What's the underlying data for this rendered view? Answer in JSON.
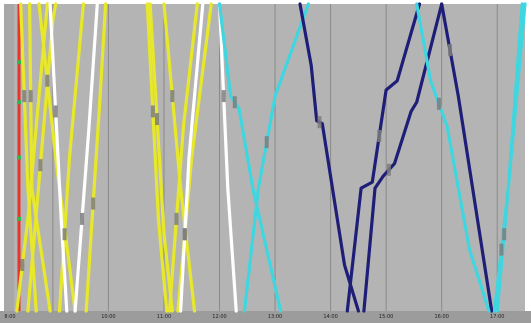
{
  "chart_data": {
    "type": "line",
    "title": "",
    "xlabel": "",
    "ylabel": "",
    "xlim": [
      8.3,
      17.5
    ],
    "ylim": [
      0,
      100
    ],
    "grid": true,
    "x_ticks": [
      {
        "value": 8,
        "label": "8:00"
      },
      {
        "value": 10,
        "label": "10:00"
      },
      {
        "value": 11,
        "label": "11:00"
      },
      {
        "value": 12,
        "label": "12:00"
      },
      {
        "value": 13,
        "label": "13:00"
      },
      {
        "value": 14,
        "label": "14:00"
      },
      {
        "value": 15,
        "label": "15:00"
      },
      {
        "value": 16,
        "label": "16:00"
      },
      {
        "value": 17,
        "label": "17:00"
      }
    ],
    "gridlines_x": [
      9,
      10,
      11,
      12,
      13,
      14,
      15,
      16,
      17
    ],
    "station_marks": [
      30,
      50,
      68,
      81
    ],
    "series": [
      {
        "color": "#e8e82a",
        "points": [
          [
            8.42,
            100
          ],
          [
            8.55,
            40
          ],
          [
            8.7,
            0
          ]
        ]
      },
      {
        "color": "#e8e82a",
        "points": [
          [
            8.58,
            100
          ],
          [
            8.62,
            40
          ],
          [
            8.95,
            0
          ]
        ]
      },
      {
        "color": "#e8e82a",
        "points": [
          [
            8.35,
            0
          ],
          [
            8.55,
            30
          ],
          [
            8.9,
            100
          ]
        ]
      },
      {
        "color": "#e8e82a",
        "points": [
          [
            8.55,
            0
          ],
          [
            9.0,
            95
          ],
          [
            9.05,
            100
          ]
        ]
      },
      {
        "color": "#e8e82a",
        "points": [
          [
            9.12,
            0
          ],
          [
            9.3,
            50
          ],
          [
            9.55,
            100
          ]
        ]
      },
      {
        "color": "#e8e82a",
        "points": [
          [
            8.75,
            100
          ],
          [
            9.05,
            50
          ],
          [
            9.4,
            0
          ]
        ]
      },
      {
        "color": "#e8e82a",
        "points": [
          [
            9.6,
            0
          ],
          [
            9.85,
            70
          ],
          [
            9.95,
            100
          ]
        ]
      },
      {
        "color": "#ffffff",
        "points": [
          [
            8.95,
            100
          ],
          [
            9.15,
            30
          ],
          [
            9.25,
            0
          ]
        ]
      },
      {
        "color": "#ffffff",
        "points": [
          [
            9.4,
            0
          ],
          [
            9.65,
            60
          ],
          [
            9.8,
            100
          ]
        ]
      },
      {
        "color": "#e8e82a",
        "points": [
          [
            10.7,
            100
          ],
          [
            10.9,
            30
          ],
          [
            11.05,
            0
          ]
        ]
      },
      {
        "color": "#e8e82a",
        "points": [
          [
            10.75,
            100
          ],
          [
            11.0,
            25
          ],
          [
            11.15,
            0
          ]
        ]
      },
      {
        "color": "#e8e82a",
        "points": [
          [
            11.0,
            100
          ],
          [
            11.3,
            40
          ],
          [
            11.55,
            0
          ]
        ]
      },
      {
        "color": "#e8e82a",
        "points": [
          [
            11.1,
            0
          ],
          [
            11.35,
            60
          ],
          [
            11.6,
            100
          ]
        ]
      },
      {
        "color": "#e8e82a",
        "points": [
          [
            11.25,
            0
          ],
          [
            11.5,
            50
          ],
          [
            11.85,
            100
          ]
        ]
      },
      {
        "color": "#ffffff",
        "points": [
          [
            11.3,
            0
          ],
          [
            11.45,
            50
          ],
          [
            11.7,
            100
          ]
        ]
      },
      {
        "color": "#ffffff",
        "points": [
          [
            12.0,
            100
          ],
          [
            12.15,
            40
          ],
          [
            12.3,
            0
          ]
        ]
      },
      {
        "color": "#3fd6e0",
        "points": [
          [
            12.0,
            100
          ],
          [
            12.2,
            70
          ],
          [
            12.35,
            66
          ],
          [
            12.6,
            40
          ],
          [
            13.1,
            0
          ]
        ]
      },
      {
        "color": "#3fd6e0",
        "points": [
          [
            12.45,
            0
          ],
          [
            12.7,
            40
          ],
          [
            13.0,
            70
          ],
          [
            13.6,
            100
          ]
        ]
      },
      {
        "color": "#1e1e78",
        "points": [
          [
            13.45,
            100
          ],
          [
            13.65,
            80
          ],
          [
            13.75,
            62
          ],
          [
            13.85,
            61
          ],
          [
            14.25,
            15
          ],
          [
            14.5,
            0
          ]
        ]
      },
      {
        "color": "#1e1e78",
        "points": [
          [
            14.6,
            0
          ],
          [
            14.8,
            40
          ],
          [
            14.95,
            44
          ],
          [
            15.15,
            48
          ],
          [
            15.45,
            65
          ],
          [
            15.55,
            68
          ],
          [
            16.0,
            100
          ]
        ]
      },
      {
        "color": "#1e1e78",
        "points": [
          [
            14.3,
            0
          ],
          [
            14.55,
            40
          ],
          [
            14.75,
            42
          ],
          [
            15.0,
            72
          ],
          [
            15.2,
            75
          ],
          [
            15.6,
            100
          ]
        ]
      },
      {
        "color": "#1e1e78",
        "points": [
          [
            16.0,
            100
          ],
          [
            16.3,
            70
          ],
          [
            16.9,
            0
          ]
        ]
      },
      {
        "color": "#3fd6e0",
        "points": [
          [
            15.55,
            100
          ],
          [
            15.8,
            75
          ],
          [
            16.1,
            60
          ],
          [
            16.5,
            20
          ],
          [
            16.85,
            0
          ]
        ]
      },
      {
        "color": "#3fd6e0",
        "points": [
          [
            16.95,
            0
          ],
          [
            17.2,
            40
          ],
          [
            17.45,
            100
          ]
        ]
      },
      {
        "color": "#3fd6e0",
        "points": [
          [
            17.0,
            0
          ],
          [
            17.25,
            50
          ],
          [
            17.5,
            100
          ]
        ]
      }
    ]
  }
}
